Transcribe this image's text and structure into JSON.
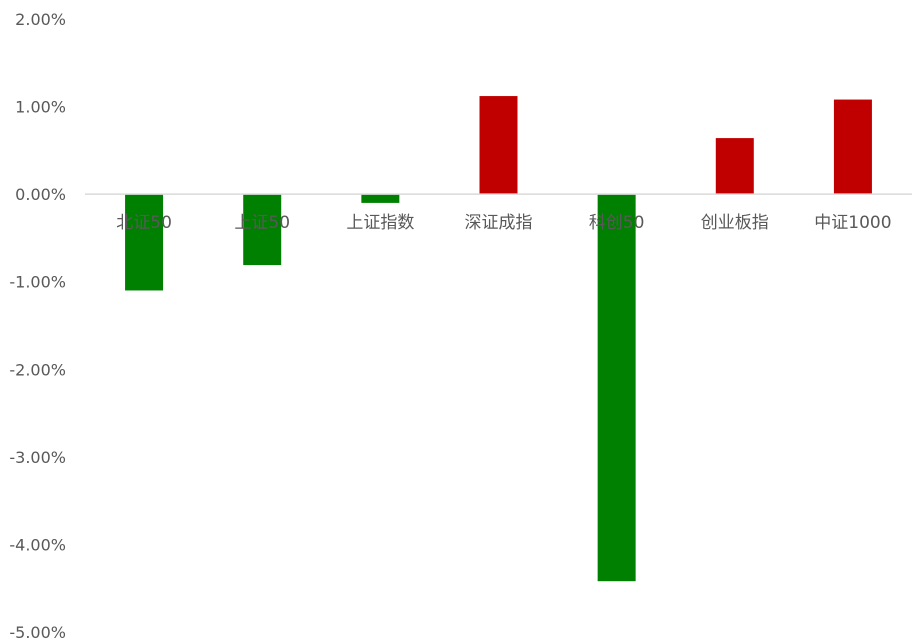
{
  "chart_data": {
    "type": "bar",
    "categories": [
      "北证50",
      "上证50",
      "上证指数",
      "深证成指",
      "科创50",
      "创业板指",
      "中证1000"
    ],
    "values": [
      -1.1,
      -0.81,
      -0.1,
      1.12,
      -4.42,
      0.64,
      1.08
    ],
    "ylim": [
      -5,
      2
    ],
    "ytick_step": 1,
    "ytick_format": "percent_2dp",
    "ytick_labels": [
      "2.00%",
      "1.00%",
      "0.00%",
      "-1.00%",
      "-2.00%",
      "-3.00%",
      "-4.00%",
      "-5.00%"
    ],
    "positive_color": "#c00000",
    "negative_color": "#008000",
    "axis_color": "#d9d9d9",
    "grid": false,
    "legend": "none"
  }
}
